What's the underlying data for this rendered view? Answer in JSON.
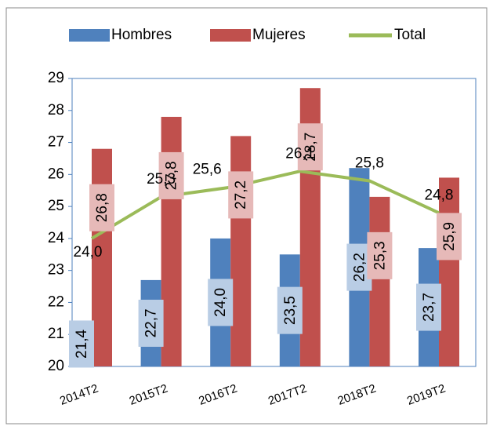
{
  "chart_data": {
    "type": "bar_line",
    "categories": [
      "2014T2",
      "2015T2",
      "2016T2",
      "2017T2",
      "2018T2",
      "2019T2"
    ],
    "series": [
      {
        "name": "Hombres",
        "type": "bar",
        "color": "#4f81bd",
        "label_color": "#b9cde5",
        "values": [
          21.4,
          22.7,
          24.0,
          23.5,
          26.2,
          23.7
        ],
        "value_labels": [
          "21,4",
          "22,7",
          "24,0",
          "23,5",
          "26,2",
          "23,7"
        ]
      },
      {
        "name": "Mujeres",
        "type": "bar",
        "color": "#c0504d",
        "label_color": "#e6b9b8",
        "values": [
          26.8,
          27.8,
          27.2,
          28.7,
          25.3,
          25.9
        ],
        "value_labels": [
          "26,8",
          "27,8",
          "27,2",
          "28,7",
          "25,3",
          "25,9"
        ]
      },
      {
        "name": "Total",
        "type": "line",
        "color": "#9bbb59",
        "values": [
          24.0,
          25.3,
          25.6,
          26.1,
          25.8,
          24.8
        ],
        "value_labels": [
          "24,0",
          "25,3",
          "25,6",
          "26,1",
          "25,8",
          "24,8"
        ]
      }
    ],
    "ylim": [
      20,
      29
    ],
    "yticks": [
      20,
      21,
      22,
      23,
      24,
      25,
      26,
      27,
      28,
      29
    ],
    "legend": "top"
  }
}
